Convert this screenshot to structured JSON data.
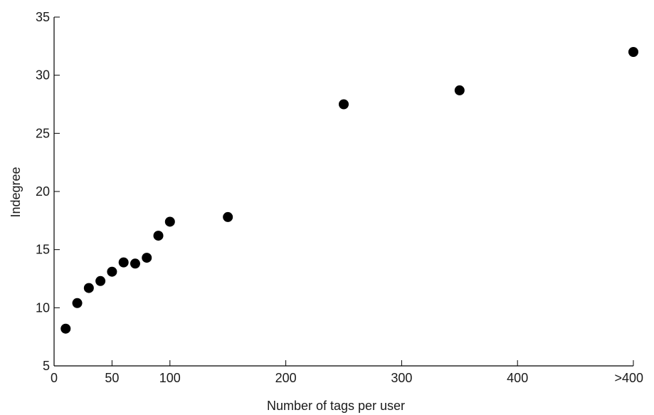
{
  "chart_data": {
    "type": "scatter",
    "title": "",
    "xlabel": "Number of tags per user",
    "ylabel": "Indegree",
    "xlim": [
      0,
      500
    ],
    "ylim": [
      5,
      35
    ],
    "grid": false,
    "legend": "none",
    "marker_color": "#000000",
    "xticks": [
      {
        "value": 0,
        "label": "0"
      },
      {
        "value": 50,
        "label": "50"
      },
      {
        "value": 100,
        "label": "100"
      },
      {
        "value": 200,
        "label": "200"
      },
      {
        "value": 300,
        "label": "300"
      },
      {
        "value": 400,
        "label": "400"
      },
      {
        "value": 500,
        "label": ">400"
      }
    ],
    "yticks": [
      {
        "value": 5,
        "label": "5"
      },
      {
        "value": 10,
        "label": "10"
      },
      {
        "value": 15,
        "label": "15"
      },
      {
        "value": 20,
        "label": "20"
      },
      {
        "value": 25,
        "label": "25"
      },
      {
        "value": 30,
        "label": "30"
      },
      {
        "value": 35,
        "label": "35"
      }
    ],
    "series": [
      {
        "points": [
          {
            "x": 10,
            "y": 8.2
          },
          {
            "x": 20,
            "y": 10.4
          },
          {
            "x": 30,
            "y": 11.7
          },
          {
            "x": 40,
            "y": 12.3
          },
          {
            "x": 50,
            "y": 13.1
          },
          {
            "x": 60,
            "y": 13.9
          },
          {
            "x": 70,
            "y": 13.8
          },
          {
            "x": 80,
            "y": 14.3
          },
          {
            "x": 90,
            "y": 16.2
          },
          {
            "x": 100,
            "y": 17.4
          },
          {
            "x": 150,
            "y": 17.8
          },
          {
            "x": 250,
            "y": 27.5
          },
          {
            "x": 350,
            "y": 28.7
          },
          {
            "x": 500,
            "y": 32.0
          }
        ]
      }
    ]
  }
}
